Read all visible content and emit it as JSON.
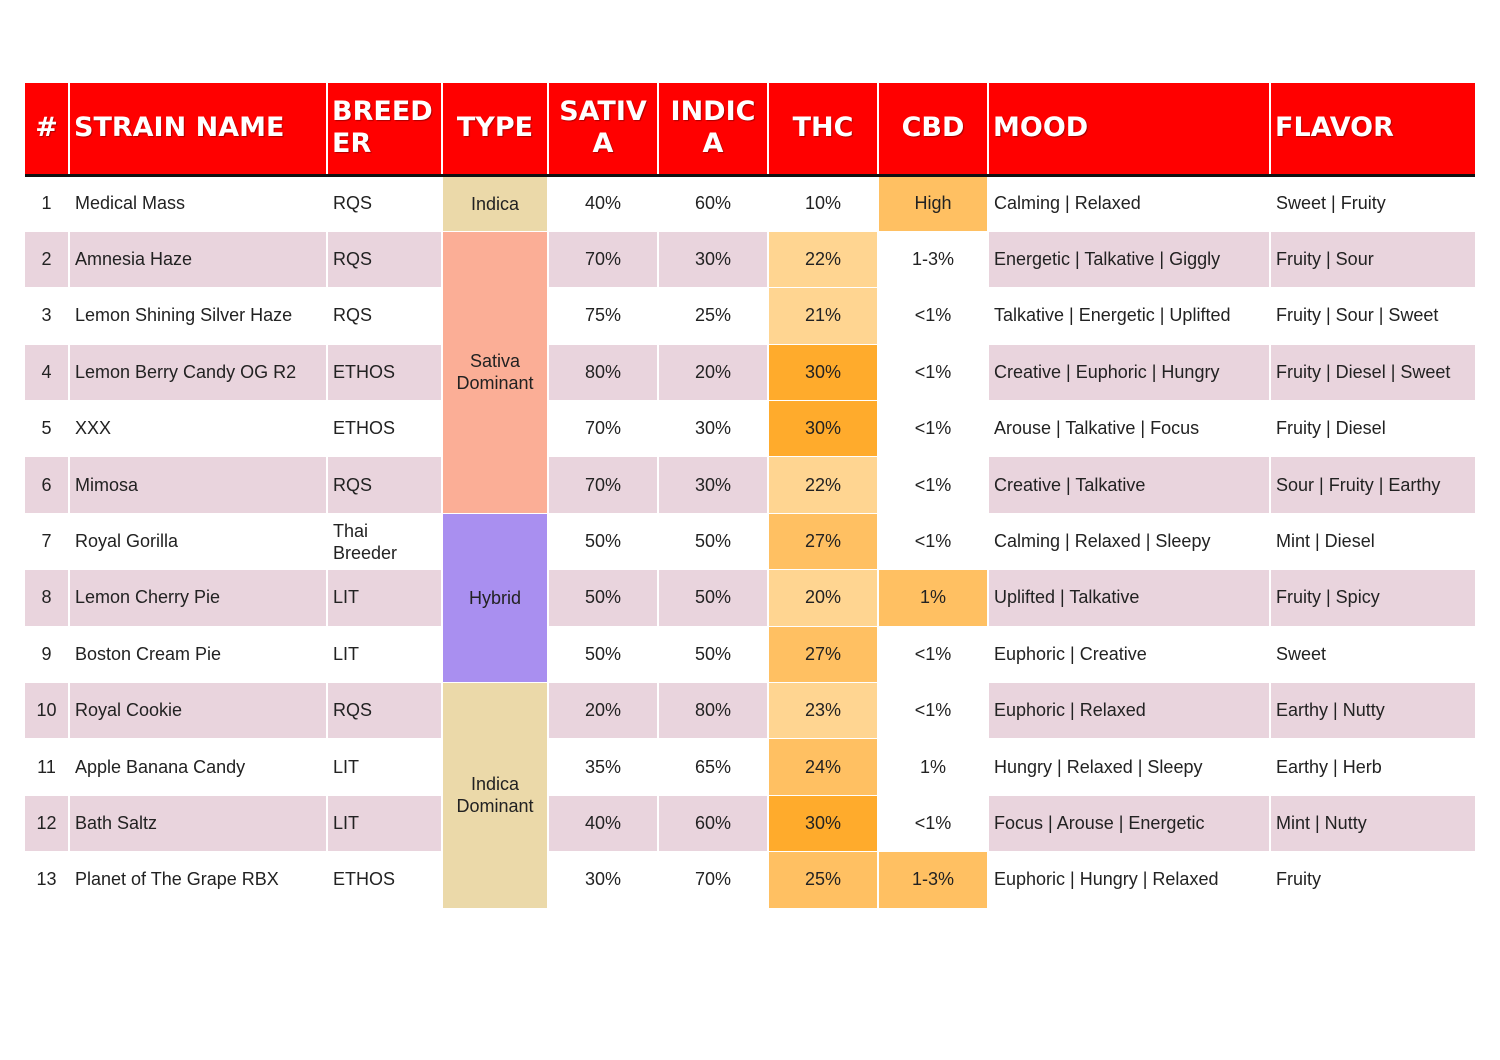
{
  "headers": {
    "num": "#",
    "strain": "STRAIN NAME",
    "breeder": "BREEDER",
    "type": "TYPE",
    "sativa": "SATIVA",
    "indica": "INDICA",
    "thc": "THC",
    "cbd": "CBD",
    "mood": "MOOD",
    "flavor": "FLAVOR"
  },
  "types": {
    "indica": "Indica",
    "sativa_dominant": "Sativa Dominant",
    "hybrid": "Hybrid",
    "indica_dominant": "Indica Dominant"
  },
  "colors": {
    "header_bg": "#ff0000",
    "stripe": "#e9d4dd",
    "type_indica": "#ebd9a9",
    "type_sativa": "#fbae96",
    "type_hybrid": "#a98ff0",
    "highlight_light": "#ffd591",
    "highlight_mid": "#ffc062",
    "highlight_strong": "#ffab2c"
  },
  "rows": [
    {
      "num": "1",
      "name": "Medical Mass",
      "breeder": "RQS",
      "sativa": "40%",
      "indica": "60%",
      "thc": "10%",
      "cbd": "High",
      "mood": "Calming | Relaxed",
      "flavor": "Sweet | Fruity"
    },
    {
      "num": "2",
      "name": "Amnesia Haze",
      "breeder": "RQS",
      "sativa": "70%",
      "indica": "30%",
      "thc": "22%",
      "cbd": "1-3%",
      "mood": "Energetic | Talkative | Giggly",
      "flavor": "Fruity | Sour"
    },
    {
      "num": "3",
      "name": "Lemon Shining Silver Haze",
      "breeder": "RQS",
      "sativa": "75%",
      "indica": "25%",
      "thc": "21%",
      "cbd": "<1%",
      "mood": "Talkative | Energetic | Uplifted",
      "flavor": "Fruity | Sour | Sweet"
    },
    {
      "num": "4",
      "name": "Lemon Berry Candy OG R2",
      "breeder": "ETHOS",
      "sativa": "80%",
      "indica": "20%",
      "thc": "30%",
      "cbd": "<1%",
      "mood": "Creative | Euphoric | Hungry",
      "flavor": "Fruity | Diesel | Sweet"
    },
    {
      "num": "5",
      "name": "XXX",
      "breeder": "ETHOS",
      "sativa": "70%",
      "indica": "30%",
      "thc": "30%",
      "cbd": "<1%",
      "mood": "Arouse | Talkative | Focus",
      "flavor": "Fruity | Diesel"
    },
    {
      "num": "6",
      "name": "Mimosa",
      "breeder": "RQS",
      "sativa": "70%",
      "indica": "30%",
      "thc": "22%",
      "cbd": "<1%",
      "mood": "Creative | Talkative",
      "flavor": "Sour | Fruity | Earthy"
    },
    {
      "num": "7",
      "name": "Royal Gorilla",
      "breeder": "Thai Breeder",
      "sativa": "50%",
      "indica": "50%",
      "thc": "27%",
      "cbd": "<1%",
      "mood": "Calming | Relaxed | Sleepy",
      "flavor": "Mint | Diesel"
    },
    {
      "num": "8",
      "name": "Lemon Cherry Pie",
      "breeder": "LIT",
      "sativa": "50%",
      "indica": "50%",
      "thc": "20%",
      "cbd": "1%",
      "mood": "Uplifted | Talkative",
      "flavor": "Fruity | Spicy"
    },
    {
      "num": "9",
      "name": "Boston Cream Pie",
      "breeder": "LIT",
      "sativa": "50%",
      "indica": "50%",
      "thc": "27%",
      "cbd": "<1%",
      "mood": "Euphoric | Creative",
      "flavor": "Sweet"
    },
    {
      "num": "10",
      "name": "Royal Cookie",
      "breeder": "RQS",
      "sativa": "20%",
      "indica": "80%",
      "thc": "23%",
      "cbd": "<1%",
      "mood": "Euphoric | Relaxed",
      "flavor": "Earthy | Nutty"
    },
    {
      "num": "11",
      "name": "Apple Banana Candy",
      "breeder": "LIT",
      "sativa": "35%",
      "indica": "65%",
      "thc": "24%",
      "cbd": "1%",
      "mood": "Hungry | Relaxed | Sleepy",
      "flavor": "Earthy | Herb"
    },
    {
      "num": "12",
      "name": "Bath Saltz",
      "breeder": "LIT",
      "sativa": "40%",
      "indica": "60%",
      "thc": "30%",
      "cbd": "<1%",
      "mood": "Focus | Arouse | Energetic",
      "flavor": "Mint | Nutty"
    },
    {
      "num": "13",
      "name": "Planet of The Grape RBX",
      "breeder": "ETHOS",
      "sativa": "30%",
      "indica": "70%",
      "thc": "25%",
      "cbd": "1-3%",
      "mood": "Euphoric | Hungry | Relaxed",
      "flavor": "Fruity"
    }
  ]
}
